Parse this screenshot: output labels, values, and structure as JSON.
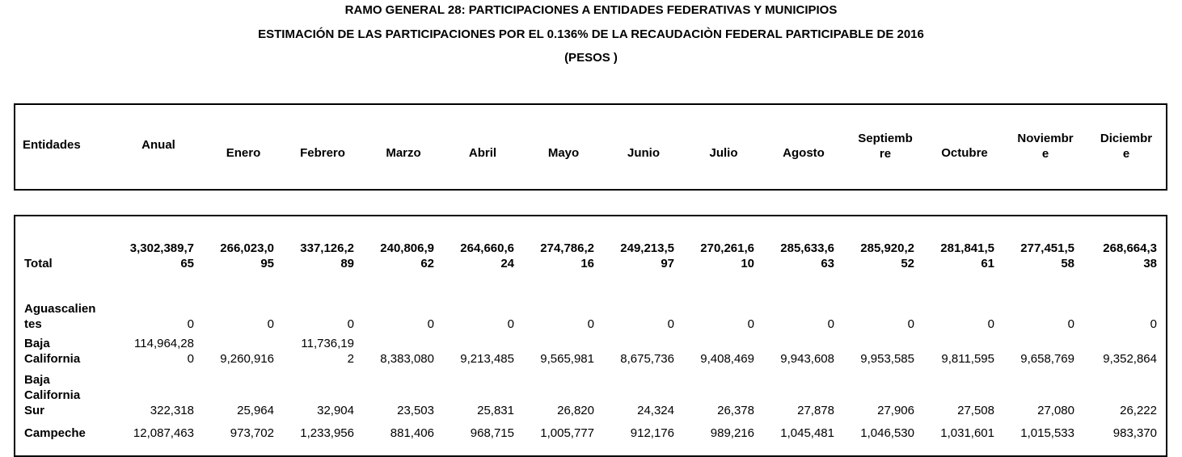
{
  "title": {
    "line1": "RAMO GENERAL 28: PARTICIPACIONES A ENTIDADES FEDERATIVAS Y MUNICIPIOS",
    "line2": "ESTIMACIÓN DE LAS PARTICIPACIONES POR EL 0.136% DE LA RECAUDACIÒN FEDERAL PARTICIPABLE DE 2016",
    "line3": "(PESOS )"
  },
  "table": {
    "headers": [
      "Entidades",
      "Anual",
      "Enero",
      "Febrero",
      "Marzo",
      "Abril",
      "Mayo",
      "Junio",
      "Julio",
      "Agosto",
      "Septiemb\nre",
      "Octubre",
      "Noviembr\ne",
      "Diciembr\ne"
    ],
    "rows": [
      {
        "entity": "Total",
        "values": [
          "3,302,389,7\n65",
          "266,023,0\n95",
          "337,126,2\n89",
          "240,806,9\n62",
          "264,660,6\n24",
          "274,786,2\n16",
          "249,213,5\n97",
          "270,261,6\n10",
          "285,633,6\n63",
          "285,920,2\n52",
          "281,841,5\n61",
          "277,451,5\n58",
          "268,664,3\n38"
        ]
      },
      {
        "entity": "Aguascalien\ntes",
        "values": [
          "0",
          "0",
          "0",
          "0",
          "0",
          "0",
          "0",
          "0",
          "0",
          "0",
          "0",
          "0",
          "0"
        ]
      },
      {
        "entity": "Baja\nCalifornia",
        "values": [
          "114,964,28\n0",
          "9,260,916",
          "11,736,19\n2",
          "8,383,080",
          "9,213,485",
          "9,565,981",
          "8,675,736",
          "9,408,469",
          "9,943,608",
          "9,953,585",
          "9,811,595",
          "9,658,769",
          "9,352,864"
        ]
      },
      {
        "entity": "Baja\nCalifornia\nSur",
        "values": [
          "322,318",
          "25,964",
          "32,904",
          "23,503",
          "25,831",
          "26,820",
          "24,324",
          "26,378",
          "27,878",
          "27,906",
          "27,508",
          "27,080",
          "26,222"
        ]
      },
      {
        "entity": "Campeche",
        "values": [
          "12,087,463",
          "973,702",
          "1,233,956",
          "881,406",
          "968,715",
          "1,005,777",
          "912,176",
          "989,216",
          "1,045,481",
          "1,046,530",
          "1,031,601",
          "1,015,533",
          "983,370"
        ]
      }
    ]
  }
}
